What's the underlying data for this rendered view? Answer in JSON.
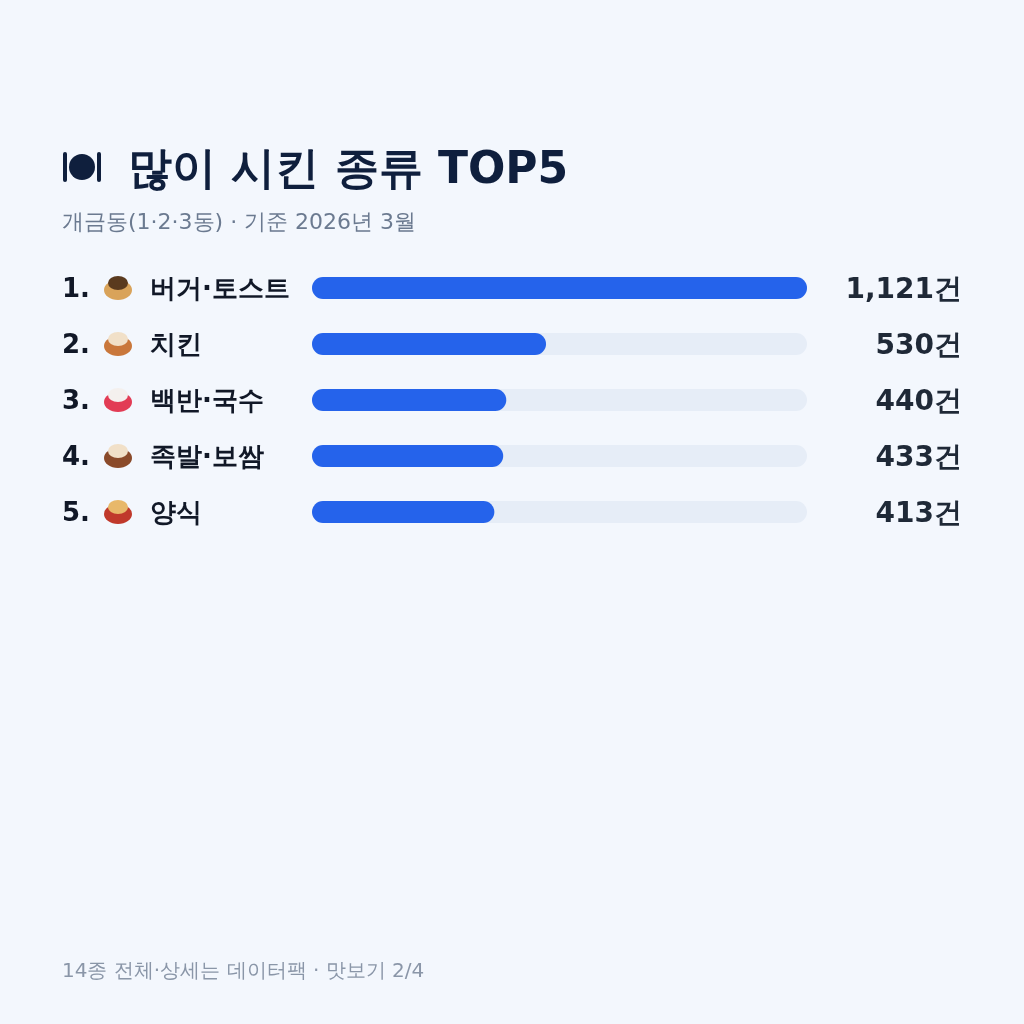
{
  "chart_data": {
    "type": "bar",
    "orientation": "horizontal",
    "title": "많이 시킨 종류 TOP5",
    "subtitle": "개금동(1·2·3동) · 기준 2026년 3월",
    "categories": [
      "1. 버거·토스트",
      "2. 치킨",
      "3. 백반·국수",
      "4. 족발·보쌈",
      "5. 양식"
    ],
    "values": [
      1121,
      530,
      440,
      433,
      413
    ],
    "value_labels": [
      "1,121건",
      "530건",
      "440건",
      "433건",
      "413건"
    ],
    "color": "#2563eb",
    "annotations": [
      "14종 전체·상세는 데이터팩 · 맛보기 2/4"
    ]
  }
}
